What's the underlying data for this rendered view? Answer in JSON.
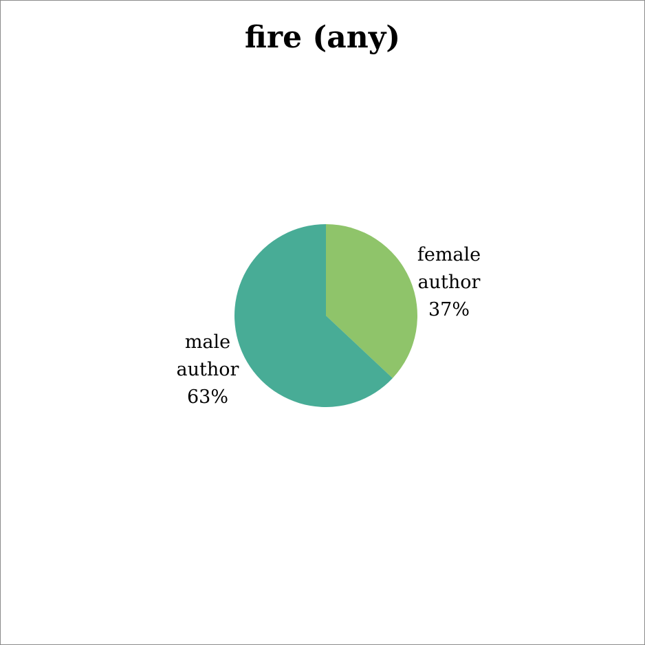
{
  "chart_data": {
    "type": "pie",
    "title": "fire (any)",
    "slices": [
      {
        "label_lines": [
          "female",
          "author",
          "37%"
        ],
        "value": 37,
        "color": "#8fc46a"
      },
      {
        "label_lines": [
          "male",
          "author",
          "63%"
        ],
        "value": 63,
        "color": "#48ac96"
      }
    ],
    "start_angle_deg": 0,
    "direction": "clockwise",
    "legend": "none"
  }
}
